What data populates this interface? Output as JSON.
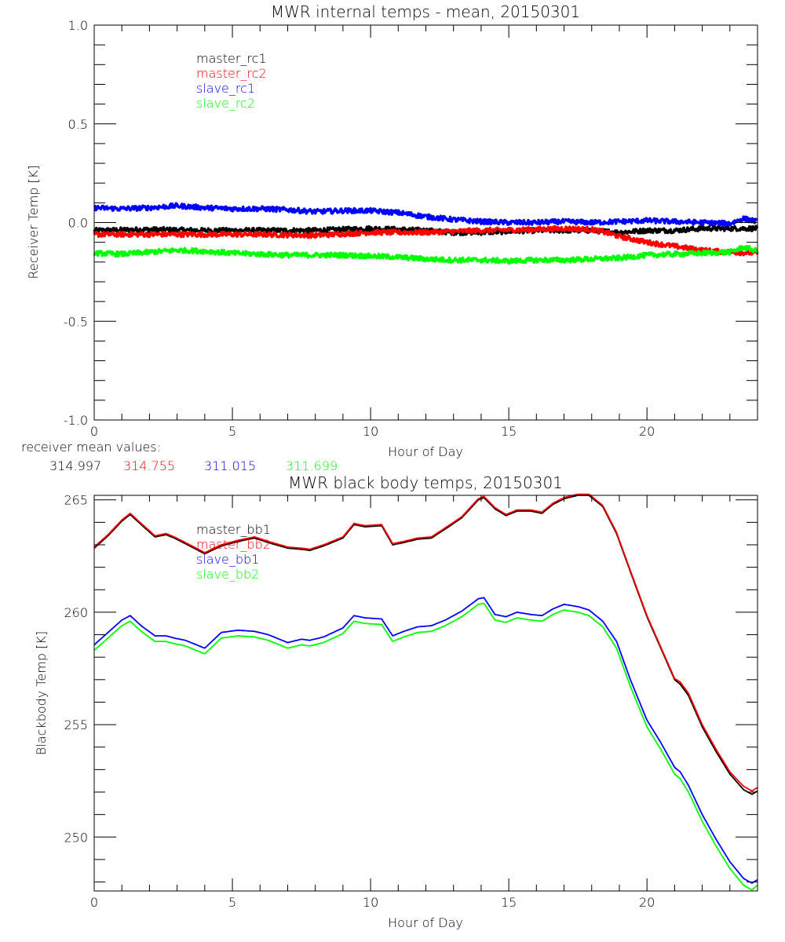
{
  "chart_data": [
    {
      "type": "line",
      "title": "MWR internal temps - mean, 20150301",
      "xlabel": "Hour of Day",
      "ylabel": "Receiver Temp [K]",
      "xlim": [
        0,
        24
      ],
      "ylim": [
        -1.0,
        1.0
      ],
      "xticks": [
        0,
        5,
        10,
        15,
        20
      ],
      "xtick_labels": [
        "0",
        "5",
        "10",
        "15",
        "20"
      ],
      "yticks": [
        -1.0,
        -0.5,
        0.0,
        0.5,
        1.0
      ],
      "ytick_labels": [
        "-1.0",
        "-0.5",
        "0.0",
        "0.5",
        "1.0"
      ],
      "grid": false,
      "legend_position": "top-left",
      "noise_amplitude": 0.012,
      "series": [
        {
          "name": "master_rc1",
          "color": "#000000",
          "x": [
            0,
            2,
            4,
            6,
            8,
            10,
            12,
            13,
            14,
            16,
            17,
            18,
            19,
            20,
            21,
            22,
            23,
            24
          ],
          "values": [
            -0.04,
            -0.035,
            -0.04,
            -0.04,
            -0.04,
            -0.03,
            -0.04,
            -0.05,
            -0.05,
            -0.04,
            -0.04,
            -0.04,
            -0.05,
            -0.04,
            -0.04,
            -0.03,
            -0.03,
            -0.03
          ]
        },
        {
          "name": "master_rc2",
          "color": "#ff0000",
          "x": [
            0,
            2,
            4,
            6,
            8,
            10,
            12,
            14,
            16,
            17,
            18,
            18.5,
            19,
            20,
            21,
            22,
            23,
            24
          ],
          "values": [
            -0.06,
            -0.06,
            -0.06,
            -0.06,
            -0.065,
            -0.05,
            -0.05,
            -0.04,
            -0.035,
            -0.03,
            -0.035,
            -0.05,
            -0.07,
            -0.1,
            -0.12,
            -0.14,
            -0.15,
            -0.155
          ]
        },
        {
          "name": "slave_rc1",
          "color": "#0000ff",
          "x": [
            0,
            1,
            2,
            3,
            4,
            5,
            6,
            7,
            8,
            9,
            10,
            11,
            12,
            13,
            14,
            15,
            16,
            17,
            18,
            19,
            20,
            21,
            22,
            23,
            23.5,
            24
          ],
          "values": [
            0.075,
            0.07,
            0.075,
            0.085,
            0.075,
            0.07,
            0.07,
            0.065,
            0.055,
            0.06,
            0.06,
            0.05,
            0.03,
            0.015,
            0.005,
            0.0,
            0.0,
            0.005,
            0.0,
            0.005,
            0.01,
            0.005,
            0.0,
            -0.005,
            0.02,
            0.005
          ]
        },
        {
          "name": "slave_rc2",
          "color": "#00ff00",
          "x": [
            0,
            1,
            2,
            3,
            4,
            5,
            6,
            7,
            8,
            9,
            10,
            11,
            12,
            13,
            14,
            15,
            16,
            17,
            18,
            19,
            20,
            21,
            22,
            23,
            23.5,
            24
          ],
          "values": [
            -0.155,
            -0.16,
            -0.15,
            -0.14,
            -0.145,
            -0.155,
            -0.16,
            -0.165,
            -0.165,
            -0.165,
            -0.17,
            -0.175,
            -0.185,
            -0.19,
            -0.19,
            -0.195,
            -0.19,
            -0.19,
            -0.185,
            -0.18,
            -0.165,
            -0.16,
            -0.155,
            -0.15,
            -0.125,
            -0.145
          ]
        }
      ]
    },
    {
      "type": "line",
      "title": "MWR black body temps, 20150301",
      "xlabel": "Hour of Day",
      "ylabel": "Blackbody Temp [K]",
      "xlim": [
        0,
        24
      ],
      "ylim": [
        247.6,
        265.2
      ],
      "xticks": [
        0,
        5,
        10,
        15,
        20
      ],
      "xtick_labels": [
        "0",
        "5",
        "10",
        "15",
        "20"
      ],
      "yticks": [
        250,
        255,
        260,
        265
      ],
      "ytick_labels": [
        "250",
        "255",
        "260",
        "265"
      ],
      "grid": false,
      "legend_position": "top-left",
      "series": [
        {
          "name": "master_bb1",
          "color": "#000000",
          "x": [
            0,
            0.5,
            1.0,
            1.3,
            1.7,
            2.2,
            2.6,
            2.9,
            3.3,
            4.0,
            4.6,
            5.2,
            5.8,
            6.3,
            7.0,
            7.5,
            7.8,
            8.3,
            9.0,
            9.4,
            9.8,
            10.4,
            10.8,
            11.2,
            11.7,
            12.2,
            12.7,
            13.3,
            13.9,
            14.1,
            14.5,
            14.9,
            15.3,
            15.8,
            16.2,
            16.6,
            17.0,
            17.5,
            17.9,
            18.4,
            18.9,
            19.4,
            20.0,
            20.5,
            21.0,
            21.2,
            21.5,
            22.0,
            22.5,
            23.0,
            23.5,
            23.8,
            24.0
          ],
          "values": [
            262.85,
            263.4,
            264.05,
            264.35,
            263.9,
            263.35,
            263.45,
            263.3,
            263.05,
            262.6,
            262.95,
            263.15,
            263.3,
            263.1,
            262.85,
            262.8,
            262.75,
            262.95,
            263.3,
            263.9,
            263.8,
            263.85,
            263.0,
            263.1,
            263.25,
            263.3,
            263.7,
            264.2,
            265.0,
            265.1,
            264.6,
            264.3,
            264.5,
            264.5,
            264.4,
            264.8,
            265.05,
            265.2,
            265.2,
            264.7,
            263.5,
            261.8,
            259.8,
            258.4,
            257.0,
            256.8,
            256.3,
            254.9,
            253.8,
            252.8,
            252.1,
            251.9,
            252.05
          ]
        },
        {
          "name": "master_bb2",
          "color": "#ff0000",
          "x": [
            0,
            0.5,
            1.0,
            1.3,
            1.7,
            2.2,
            2.6,
            2.9,
            3.3,
            4.0,
            4.6,
            5.2,
            5.8,
            6.3,
            7.0,
            7.5,
            7.8,
            8.3,
            9.0,
            9.4,
            9.8,
            10.4,
            10.8,
            11.2,
            11.7,
            12.2,
            12.7,
            13.3,
            13.9,
            14.1,
            14.5,
            14.9,
            15.3,
            15.8,
            16.2,
            16.6,
            17.0,
            17.5,
            17.9,
            18.4,
            18.9,
            19.4,
            20.0,
            20.5,
            21.0,
            21.2,
            21.5,
            22.0,
            22.5,
            23.0,
            23.5,
            23.8,
            24.0
          ],
          "values": [
            262.9,
            263.45,
            264.1,
            264.4,
            263.95,
            263.4,
            263.5,
            263.35,
            263.1,
            262.65,
            263.0,
            263.2,
            263.35,
            263.15,
            262.9,
            262.85,
            262.8,
            263.0,
            263.35,
            263.95,
            263.85,
            263.9,
            263.05,
            263.15,
            263.3,
            263.35,
            263.75,
            264.25,
            265.05,
            265.15,
            264.65,
            264.35,
            264.55,
            264.55,
            264.45,
            264.85,
            265.1,
            265.25,
            265.25,
            264.75,
            263.55,
            261.85,
            259.85,
            258.45,
            257.05,
            256.9,
            256.4,
            255.0,
            253.9,
            252.9,
            252.25,
            252.05,
            252.2
          ]
        },
        {
          "name": "slave_bb1",
          "color": "#0000ff",
          "x": [
            0,
            0.5,
            1.0,
            1.3,
            1.7,
            2.2,
            2.6,
            2.9,
            3.3,
            4.0,
            4.6,
            5.2,
            5.8,
            6.3,
            7.0,
            7.5,
            7.8,
            8.3,
            9.0,
            9.4,
            9.8,
            10.4,
            10.8,
            11.2,
            11.7,
            12.2,
            12.7,
            13.3,
            13.9,
            14.1,
            14.5,
            14.9,
            15.3,
            15.8,
            16.2,
            16.6,
            17.0,
            17.5,
            17.9,
            18.4,
            18.9,
            19.4,
            20.0,
            20.5,
            21.0,
            21.2,
            21.5,
            22.0,
            22.5,
            23.0,
            23.5,
            23.8,
            24.0
          ],
          "values": [
            258.55,
            259.1,
            259.65,
            259.85,
            259.4,
            258.95,
            258.95,
            258.85,
            258.75,
            258.4,
            259.1,
            259.2,
            259.15,
            259.0,
            258.65,
            258.8,
            258.75,
            258.9,
            259.3,
            259.85,
            259.75,
            259.7,
            258.95,
            259.15,
            259.35,
            259.4,
            259.65,
            260.05,
            260.6,
            260.65,
            259.9,
            259.8,
            260.0,
            259.9,
            259.85,
            260.15,
            260.35,
            260.25,
            260.1,
            259.6,
            258.7,
            257.0,
            255.2,
            254.2,
            253.1,
            252.9,
            252.3,
            251.0,
            249.9,
            248.9,
            248.15,
            247.95,
            248.1
          ]
        },
        {
          "name": "slave_bb2",
          "color": "#00ff00",
          "x": [
            0,
            0.5,
            1.0,
            1.3,
            1.7,
            2.2,
            2.6,
            2.9,
            3.3,
            4.0,
            4.6,
            5.2,
            5.8,
            6.3,
            7.0,
            7.5,
            7.8,
            8.3,
            9.0,
            9.4,
            9.8,
            10.4,
            10.8,
            11.2,
            11.7,
            12.2,
            12.7,
            13.3,
            13.9,
            14.1,
            14.5,
            14.9,
            15.3,
            15.8,
            16.2,
            16.6,
            17.0,
            17.5,
            17.9,
            18.4,
            18.9,
            19.4,
            20.0,
            20.5,
            21.0,
            21.2,
            21.5,
            22.0,
            22.5,
            23.0,
            23.5,
            23.8,
            24.0
          ],
          "values": [
            258.3,
            258.85,
            259.4,
            259.6,
            259.15,
            258.7,
            258.7,
            258.6,
            258.5,
            258.15,
            258.85,
            258.95,
            258.9,
            258.75,
            258.4,
            258.55,
            258.5,
            258.65,
            259.05,
            259.6,
            259.5,
            259.45,
            258.7,
            258.9,
            259.1,
            259.15,
            259.4,
            259.8,
            260.35,
            260.4,
            259.65,
            259.55,
            259.75,
            259.65,
            259.6,
            259.9,
            260.1,
            260.0,
            259.85,
            259.35,
            258.4,
            256.7,
            254.9,
            253.9,
            252.8,
            252.6,
            252.0,
            250.7,
            249.6,
            248.6,
            247.85,
            247.65,
            247.85
          ]
        }
      ]
    }
  ],
  "annotations": {
    "receiver_mean_label": "receiver mean values:",
    "receiver_means": [
      {
        "value": "314.997",
        "color": "#000000"
      },
      {
        "value": "314.755",
        "color": "#ff0000"
      },
      {
        "value": "311.015",
        "color": "#0000ff"
      },
      {
        "value": "311.699",
        "color": "#00ff00"
      }
    ]
  }
}
